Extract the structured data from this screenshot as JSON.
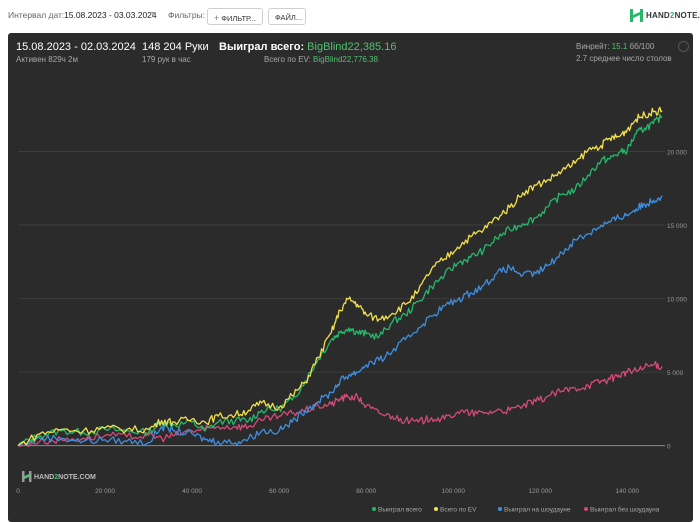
{
  "topbar": {
    "interval_label": "Интервал дат:",
    "interval_value": "15.08.2023 - 03.03.2024",
    "filters_label": "Фильтры:",
    "filter_button": "ФИЛЬТР...",
    "files_button": "ФАЙЛ..."
  },
  "logo": {
    "text_a": "HAND",
    "text_b": "2",
    "text_c": "NOTE.COM"
  },
  "summary": {
    "date_range": "15.08.2023 - 02.03.2024",
    "active_time": "Активен 829ч 2м",
    "hands": "148 204 Руки",
    "hands_per_hour": "179 рук в час",
    "won_label": "Выиграл всего:",
    "won_value": "BigBlind22,385.16",
    "ev_label": "Всего по EV:",
    "ev_value": "BigBlind22,776.38",
    "winrate_label": "Винрейт:",
    "winrate_value": "15.1",
    "winrate_unit": "бб/100",
    "avg_tables": "2.7 среднее число столов"
  },
  "colors": {
    "won": "#26b86a",
    "ev": "#f2e14a",
    "showdown": "#3d8fe0",
    "non_showdown": "#d54a78"
  },
  "chart_data": {
    "type": "line",
    "x_ticks": [
      0,
      20000,
      40000,
      60000,
      80000,
      100000,
      120000,
      140000
    ],
    "x_tick_labels": [
      "0",
      "20 000",
      "40 000",
      "60 000",
      "80 000",
      "100 000",
      "120 000",
      "140 000"
    ],
    "y_ticks": [
      0,
      5000,
      10000,
      15000,
      20000
    ],
    "y_tick_labels": [
      "0",
      "5 000",
      "10 000",
      "15 000",
      "20 000"
    ],
    "xlim": [
      0,
      148204
    ],
    "ylim": [
      -2000,
      25000
    ],
    "grid": true,
    "legend": "bottom-right",
    "x": [
      0,
      5000,
      10000,
      15000,
      20000,
      25000,
      30000,
      33000,
      36000,
      40000,
      43000,
      46000,
      50000,
      53000,
      56000,
      60000,
      63000,
      66000,
      69000,
      72000,
      74000,
      76000,
      78000,
      80000,
      83000,
      86000,
      89000,
      92000,
      95000,
      98000,
      101000,
      104000,
      107000,
      110000,
      113000,
      116000,
      119000,
      122000,
      125000,
      128000,
      131000,
      134000,
      136000,
      138000,
      140000,
      142000,
      144000,
      146000,
      148000
    ],
    "series": [
      {
        "name": "Выиграл всего",
        "values": [
          0,
          700,
          1000,
          900,
          1100,
          1000,
          900,
          1600,
          1400,
          1600,
          1000,
          1600,
          1700,
          1700,
          2400,
          2500,
          3100,
          4400,
          5900,
          7200,
          7700,
          8000,
          7700,
          7600,
          7400,
          8400,
          8900,
          9800,
          10800,
          11600,
          12400,
          12800,
          13300,
          14100,
          14700,
          15100,
          15500,
          16300,
          17100,
          17400,
          18400,
          19400,
          19500,
          19900,
          20100,
          21200,
          21600,
          21900,
          22385
        ]
      },
      {
        "name": "Всего по EV",
        "values": [
          0,
          800,
          1100,
          1000,
          1200,
          1100,
          1100,
          1700,
          1600,
          1800,
          1600,
          2000,
          2100,
          2400,
          2900,
          2600,
          3400,
          4300,
          6000,
          7700,
          9200,
          10000,
          9600,
          8900,
          8600,
          9000,
          9600,
          10500,
          12000,
          12700,
          13500,
          14200,
          14700,
          15500,
          16200,
          17200,
          17700,
          18100,
          18700,
          19200,
          20100,
          20400,
          20900,
          21000,
          21500,
          22200,
          22500,
          22700,
          22776
        ]
      },
      {
        "name": "Выиграл на шоудауне",
        "values": [
          0,
          500,
          500,
          300,
          400,
          300,
          200,
          1300,
          1000,
          800,
          400,
          300,
          200,
          500,
          1000,
          1000,
          1600,
          2400,
          3000,
          3600,
          4400,
          4800,
          5000,
          5500,
          5800,
          6400,
          7200,
          8000,
          8800,
          9500,
          9900,
          10400,
          10900,
          11700,
          12100,
          11600,
          11700,
          12300,
          13100,
          14000,
          14400,
          15000,
          15200,
          15500,
          15700,
          16100,
          16400,
          16700,
          17000
        ]
      },
      {
        "name": "Выиграл без шоудауна",
        "values": [
          0,
          300,
          400,
          500,
          700,
          600,
          700,
          500,
          700,
          1000,
          1100,
          1300,
          1300,
          1300,
          1700,
          2000,
          2200,
          2400,
          2700,
          2800,
          3200,
          3300,
          3300,
          2700,
          2200,
          2000,
          1700,
          1600,
          1900,
          1800,
          2300,
          2200,
          2200,
          2400,
          2400,
          2700,
          3000,
          3400,
          3700,
          3900,
          4100,
          4400,
          4500,
          4800,
          5000,
          5100,
          5300,
          5500,
          5385
        ]
      }
    ]
  }
}
